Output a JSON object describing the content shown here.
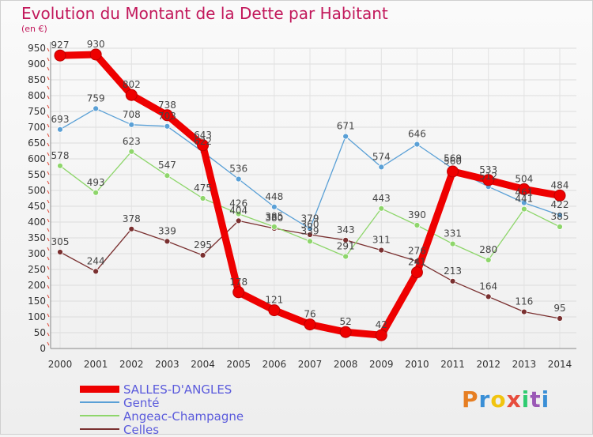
{
  "header": {
    "title": "Evolution du Montant de la Dette par Habitant",
    "unit": "(en €)"
  },
  "logo": {
    "text": "Proxiti"
  },
  "chart_data": {
    "type": "line",
    "title": "Evolution du Montant de la Dette par Habitant",
    "subtitle": "(en €)",
    "x": [
      "2000",
      "2001",
      "2002",
      "2003",
      "2004",
      "2005",
      "2006",
      "2007",
      "2008",
      "2009",
      "2010",
      "2011",
      "2012",
      "2013",
      "2014"
    ],
    "ylim": [
      0,
      950
    ],
    "yticks": [
      0,
      50,
      100,
      150,
      200,
      250,
      300,
      350,
      400,
      450,
      500,
      550,
      600,
      650,
      700,
      750,
      800,
      850,
      900,
      950
    ],
    "grid": true,
    "legend": "bottom-left",
    "series": [
      {
        "name": "SALLES-D'ANGLES",
        "color": "#ee0000",
        "values": [
          927,
          930,
          802,
          738,
          643,
          178,
          121,
          76,
          52,
          42,
          241,
          560,
          533,
          504,
          484
        ]
      },
      {
        "name": "Genté",
        "color": "#5aa0d6",
        "values": [
          693,
          759,
          708,
          703,
          622,
          536,
          448,
          379,
          671,
          574,
          646,
          569,
          512,
          461,
          422
        ]
      },
      {
        "name": "Angeac-Champagne",
        "color": "#8ed66b",
        "values": [
          578,
          493,
          623,
          547,
          475,
          426,
          385,
          339,
          291,
          443,
          390,
          331,
          280,
          441,
          385
        ]
      },
      {
        "name": "Celles",
        "color": "#7a3030",
        "values": [
          305,
          244,
          378,
          339,
          295,
          404,
          380,
          360,
          343,
          311,
          276,
          213,
          164,
          116,
          95
        ]
      }
    ]
  }
}
